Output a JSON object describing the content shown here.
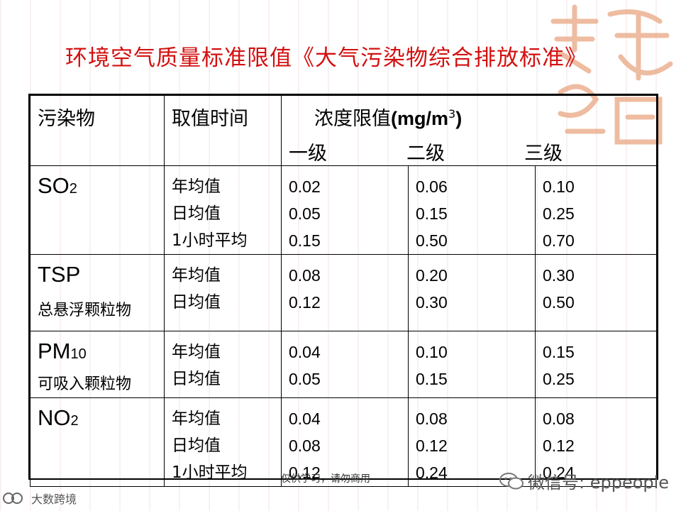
{
  "title": "环境空气质量标准限值《大气污染物综合排放标准》",
  "table": {
    "header": {
      "pollutant": "污染物",
      "time": "取值时间",
      "concentration_prefix": "浓度限值",
      "concentration_unit": "(mg/m",
      "unit_sup": "3",
      "unit_close": ")",
      "grades": [
        "一级",
        "二级",
        "三级"
      ]
    },
    "rows": [
      {
        "name": "SO",
        "sub": "2",
        "cn": "",
        "times": [
          "年均值",
          "日均值",
          "1小时平均"
        ],
        "g1": [
          "0.02",
          "0.05",
          "0.15"
        ],
        "g2": [
          "0.06",
          "0.15",
          "0.50"
        ],
        "g3": [
          "0.10",
          "0.25",
          "0.70"
        ]
      },
      {
        "name": "TSP",
        "sub": "",
        "cn": "总悬浮颗粒物",
        "times": [
          "年均值",
          "日均值"
        ],
        "g1": [
          "0.08",
          "0.12"
        ],
        "g2": [
          "0.20",
          "0.30"
        ],
        "g3": [
          "0.30",
          "0.50"
        ]
      },
      {
        "name": "PM",
        "sub": "10",
        "cn": "可吸入颗粒物",
        "times": [
          "年均值",
          "日均值"
        ],
        "g1": [
          "0.04",
          "0.05"
        ],
        "g2": [
          "0.10",
          "0.15"
        ],
        "g3": [
          "0.15",
          "0.25"
        ]
      },
      {
        "name": "NO",
        "sub": "2",
        "cn": "",
        "times": [
          "年均值",
          "日均值",
          "1小时平均"
        ],
        "g1": [
          "0.04",
          "0.08",
          "0.12"
        ],
        "g2": [
          "0.08",
          "0.12",
          "0.24"
        ],
        "g3": [
          "0.08",
          "0.12",
          "0.24"
        ]
      }
    ]
  },
  "footer_note": "仅供学习，请勿商用",
  "wechat": "微信号: eppeople",
  "brand": "大数跨境",
  "colors": {
    "title": "#d31010",
    "seal": "#e8a07a"
  },
  "icons": [
    "wechat-icon",
    "brand-logo-icon",
    "seal-watermark"
  ]
}
